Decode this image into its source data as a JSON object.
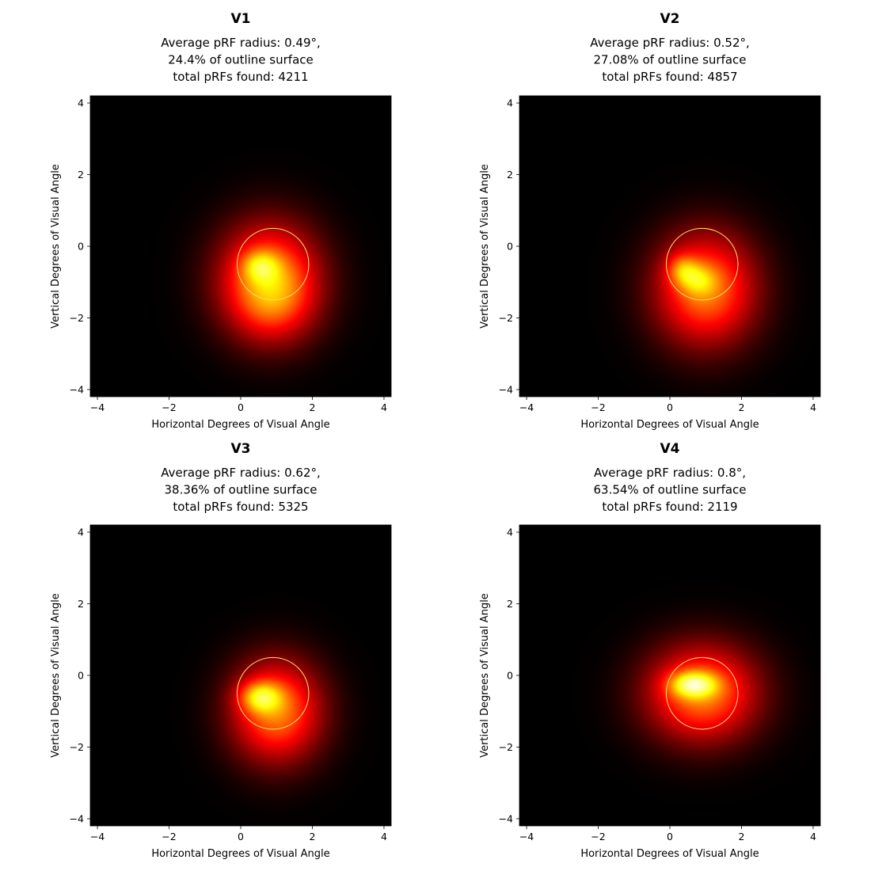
{
  "panels": [
    {
      "title": "V1",
      "subtitle_lines": [
        "Average pRF radius: 0.49°,",
        "24.4% of outline surface",
        "total pRFs found: 4211"
      ],
      "chart_data": {
        "type": "heatmap",
        "xlabel": "Horizontal Degrees of Visual Angle",
        "ylabel": "Vertical Degrees of Visual Angle",
        "xlim": [
          -4.2,
          4.2
        ],
        "ylim": [
          -4.2,
          4.2
        ],
        "xticks": [
          -4,
          -2,
          0,
          2,
          4
        ],
        "yticks": [
          -4,
          -2,
          0,
          2,
          4
        ],
        "colormap": "hot",
        "outline_circle": {
          "center": [
            0.9,
            -0.5
          ],
          "radius": 1.0,
          "color": "#ffe066"
        },
        "density_blobs": [
          {
            "center": [
              0.8,
              -0.9
            ],
            "sigma": [
              1.0,
              1.1
            ],
            "weight": 0.55
          },
          {
            "center": [
              0.55,
              -0.55
            ],
            "sigma": [
              0.35,
              0.3
            ],
            "weight": 0.25
          },
          {
            "center": [
              0.9,
              -1.6
            ],
            "sigma": [
              0.8,
              0.8
            ],
            "weight": 0.18
          }
        ]
      }
    },
    {
      "title": "V2",
      "subtitle_lines": [
        "Average pRF radius: 0.52°,",
        "27.08% of outline surface",
        "total pRFs found: 4857"
      ],
      "chart_data": {
        "type": "heatmap",
        "xlabel": "Horizontal Degrees of Visual Angle",
        "ylabel": "Vertical Degrees of Visual Angle",
        "xlim": [
          -4.2,
          4.2
        ],
        "ylim": [
          -4.2,
          4.2
        ],
        "xticks": [
          -4,
          -2,
          0,
          2,
          4
        ],
        "yticks": [
          -4,
          -2,
          0,
          2,
          4
        ],
        "colormap": "hot",
        "outline_circle": {
          "center": [
            0.9,
            -0.5
          ],
          "radius": 1.0,
          "color": "#ffe066"
        },
        "density_blobs": [
          {
            "center": [
              1.0,
              -1.2
            ],
            "sigma": [
              1.0,
              1.1
            ],
            "weight": 0.55
          },
          {
            "center": [
              0.35,
              -0.65
            ],
            "sigma": [
              0.3,
              0.3
            ],
            "weight": 0.25
          },
          {
            "center": [
              0.8,
              -0.95
            ],
            "sigma": [
              0.35,
              0.3
            ],
            "weight": 0.2
          }
        ]
      }
    },
    {
      "title": "V3",
      "subtitle_lines": [
        "Average pRF radius: 0.62°,",
        "38.36% of outline surface",
        "total pRFs found: 5325"
      ],
      "chart_data": {
        "type": "heatmap",
        "xlabel": "Horizontal Degrees of Visual Angle",
        "ylabel": "Vertical Degrees of Visual Angle",
        "xlim": [
          -4.2,
          4.2
        ],
        "ylim": [
          -4.2,
          4.2
        ],
        "xticks": [
          -4,
          -2,
          0,
          2,
          4
        ],
        "yticks": [
          -4,
          -2,
          0,
          2,
          4
        ],
        "colormap": "hot",
        "outline_circle": {
          "center": [
            0.9,
            -0.5
          ],
          "radius": 1.0,
          "color": "#ffe066"
        },
        "density_blobs": [
          {
            "center": [
              1.0,
              -1.0
            ],
            "sigma": [
              0.9,
              1.0
            ],
            "weight": 0.55
          },
          {
            "center": [
              0.55,
              -0.6
            ],
            "sigma": [
              0.4,
              0.3
            ],
            "weight": 0.38
          }
        ]
      }
    },
    {
      "title": "V4",
      "subtitle_lines": [
        "Average pRF radius: 0.8°,",
        "63.54% of outline surface",
        "total pRFs found: 2119"
      ],
      "chart_data": {
        "type": "heatmap",
        "xlabel": "Horizontal Degrees of Visual Angle",
        "ylabel": "Vertical Degrees of Visual Angle",
        "xlim": [
          -4.2,
          4.2
        ],
        "ylim": [
          -4.2,
          4.2
        ],
        "xticks": [
          -4,
          -2,
          0,
          2,
          4
        ],
        "yticks": [
          -4,
          -2,
          0,
          2,
          4
        ],
        "colormap": "hot",
        "outline_circle": {
          "center": [
            0.9,
            -0.5
          ],
          "radius": 1.0,
          "color": "#ffe066"
        },
        "density_blobs": [
          {
            "center": [
              0.9,
              -0.5
            ],
            "sigma": [
              1.1,
              0.95
            ],
            "weight": 0.55
          },
          {
            "center": [
              0.65,
              -0.25
            ],
            "sigma": [
              0.45,
              0.25
            ],
            "weight": 0.45
          }
        ]
      }
    }
  ]
}
